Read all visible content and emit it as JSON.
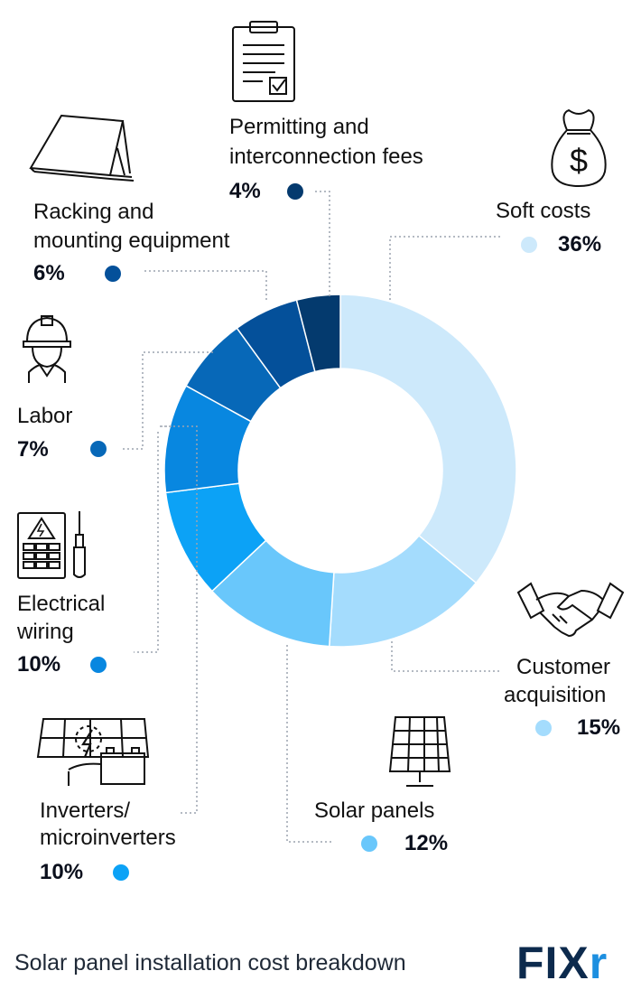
{
  "chart_data": {
    "type": "pie",
    "variant": "donut",
    "slices": [
      {
        "key": "soft",
        "label": "Soft costs",
        "value": 36,
        "value_label": "36%",
        "color": "#cde9fb",
        "icon": "money-bag-icon"
      },
      {
        "key": "customer",
        "label": "Customer acquisition",
        "value": 15,
        "value_label": "15%",
        "color": "#a4dcfd",
        "icon": "handshake-icon"
      },
      {
        "key": "panels",
        "label": "Solar panels",
        "value": 12,
        "value_label": "12%",
        "color": "#69c7fb",
        "icon": "solar-panel-icon"
      },
      {
        "key": "inverters",
        "label": "Inverters/ microinverters",
        "value": 10,
        "value_label": "10%",
        "color": "#0ca2f6",
        "icon": "inverter-battery-icon"
      },
      {
        "key": "electrical",
        "label": "Electrical wiring",
        "value": 10,
        "value_label": "10%",
        "color": "#0887e0",
        "icon": "electrical-panel-screwdriver-icon"
      },
      {
        "key": "labor",
        "label": "Labor",
        "value": 7,
        "value_label": "7%",
        "color": "#0768b8",
        "icon": "hard-hat-worker-icon"
      },
      {
        "key": "racking",
        "label": "Racking and mounting equipment",
        "value": 6,
        "value_label": "6%",
        "color": "#04509a",
        "icon": "panel-mount-icon"
      },
      {
        "key": "permitting",
        "label": "Permitting and interconnection fees",
        "value": 4,
        "value_label": "4%",
        "color": "#043a6e",
        "icon": "clipboard-checklist-icon"
      }
    ],
    "title": "Solar panel installation cost breakdown"
  },
  "labels": {
    "soft": "Soft costs",
    "customer_1": "Customer",
    "customer_2": "acquisition",
    "panels": "Solar panels",
    "inverters_1": "Inverters/",
    "inverters_2": "microinverters",
    "electrical_1": "Electrical",
    "electrical_2": "wiring",
    "labor": "Labor",
    "racking_1": "Racking and",
    "racking_2": "mounting equipment",
    "permitting_1": "Permitting and",
    "permitting_2": "interconnection fees"
  },
  "footer": {
    "caption": "Solar panel installation cost breakdown"
  },
  "brand": {
    "logo_main": "FIX",
    "logo_accent": "r"
  }
}
